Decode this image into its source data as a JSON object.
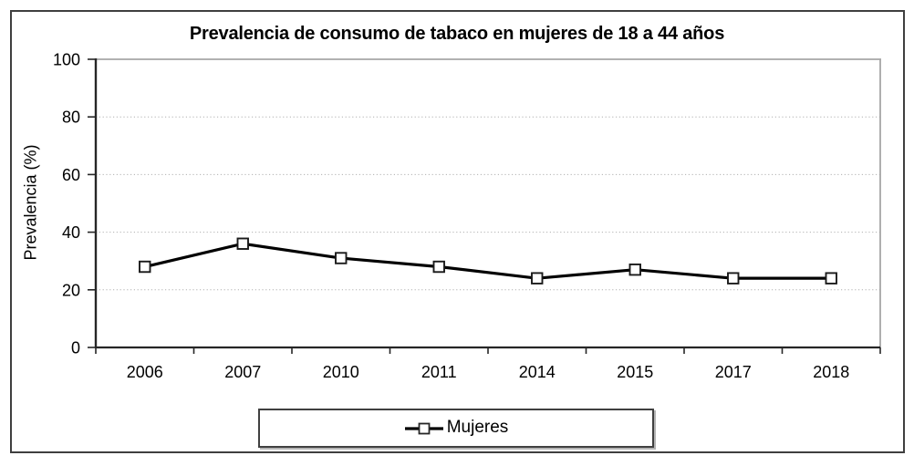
{
  "chart_data": {
    "type": "line",
    "title": "Prevalencia de consumo de tabaco en mujeres de 18 a 44 años",
    "xlabel": "",
    "ylabel": "Prevalencia (%)",
    "categories": [
      "2006",
      "2007",
      "2010",
      "2011",
      "2014",
      "2015",
      "2017",
      "2018"
    ],
    "series": [
      {
        "name": "Mujeres",
        "values": [
          28,
          36,
          31,
          28,
          24,
          27,
          24,
          24
        ],
        "marker": "open-square",
        "color": "#000000"
      }
    ],
    "ylim": [
      0,
      100
    ],
    "yticks": [
      0,
      20,
      40,
      60,
      80,
      100
    ],
    "ytick_step": 20,
    "grid": "horizontal-dotted",
    "legend_position": "bottom",
    "colors": {
      "line": "#000000",
      "marker_fill": "#ffffff",
      "marker_stroke": "#1a1a1a",
      "grid": "#b0b0b0",
      "axis": "#262626",
      "plot_border": "#a6a6a6",
      "frame_border": "#3f3f3f",
      "background": "#ffffff",
      "text": "#000000"
    }
  }
}
